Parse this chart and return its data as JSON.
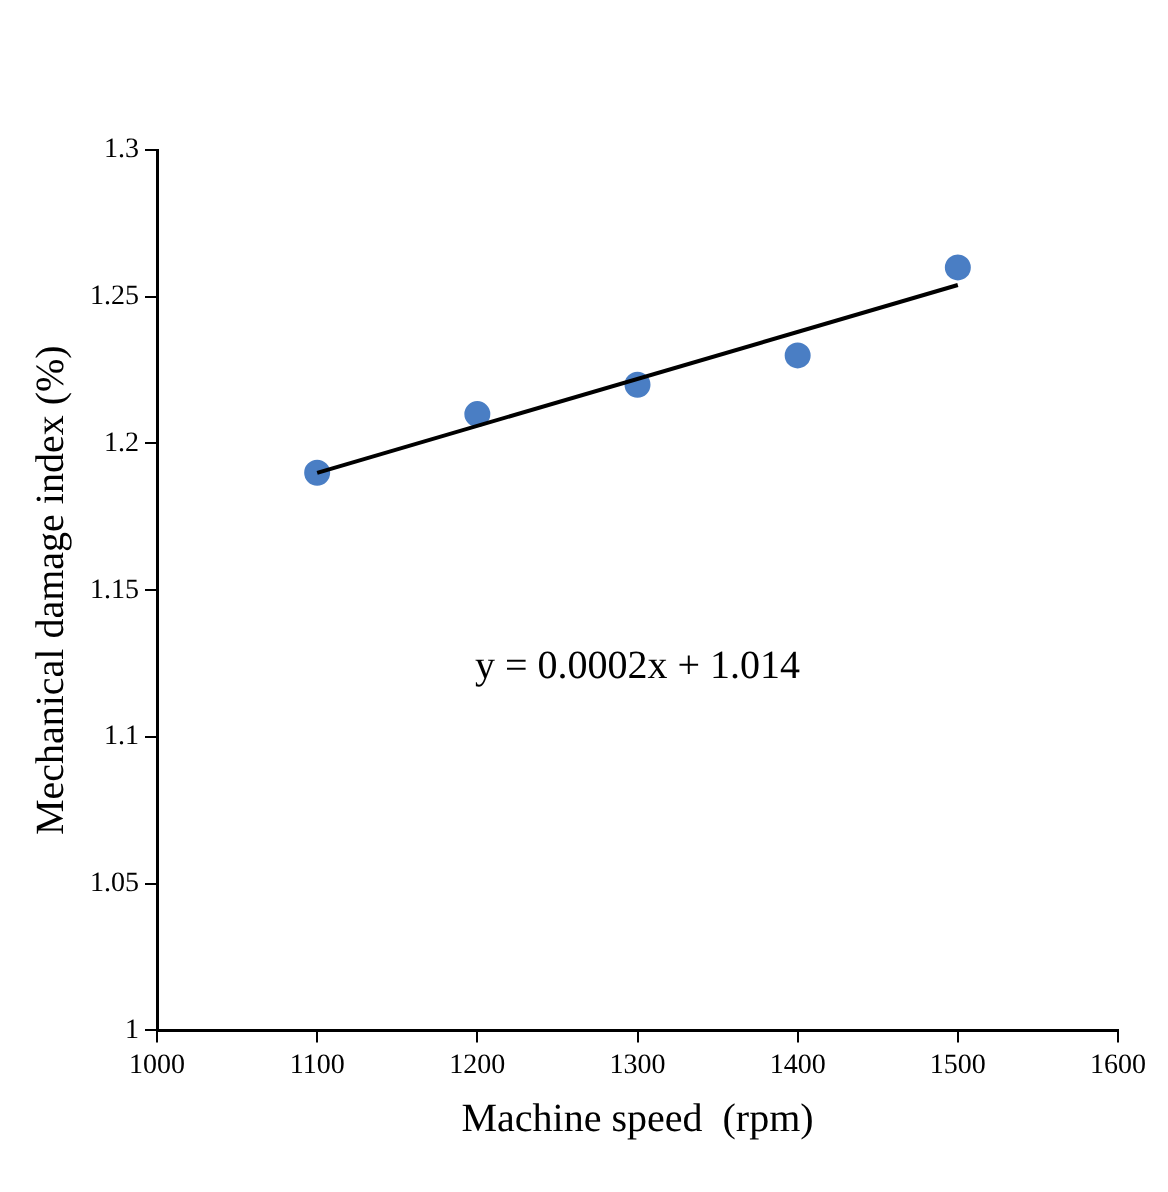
{
  "chart_data": {
    "type": "scatter",
    "xlabel": "Machine speed  (rpm)",
    "ylabel": "Mechanical damage index (%)",
    "series": [
      {
        "color": "#4a7ec4",
        "marker": "circle",
        "x": [
          1100,
          1200,
          1300,
          1400,
          1500
        ],
        "values": [
          1.19,
          1.21,
          1.22,
          1.23,
          1.26
        ]
      },
      {
        "type": "line",
        "color": "#000000",
        "x": [
          1100,
          1500
        ],
        "values": [
          1.19,
          1.254
        ]
      }
    ],
    "xlim": [
      1000,
      1600
    ],
    "xticks": [
      1000,
      1100,
      1200,
      1300,
      1400,
      1500,
      1600
    ],
    "ylim": [
      1,
      1.3
    ],
    "yticks": [
      1,
      1.05,
      1.1,
      1.15,
      1.2,
      1.25,
      1.3
    ],
    "annotations": [
      "y = 0.0002x + 1.014"
    ],
    "grid": false,
    "legend": false
  }
}
